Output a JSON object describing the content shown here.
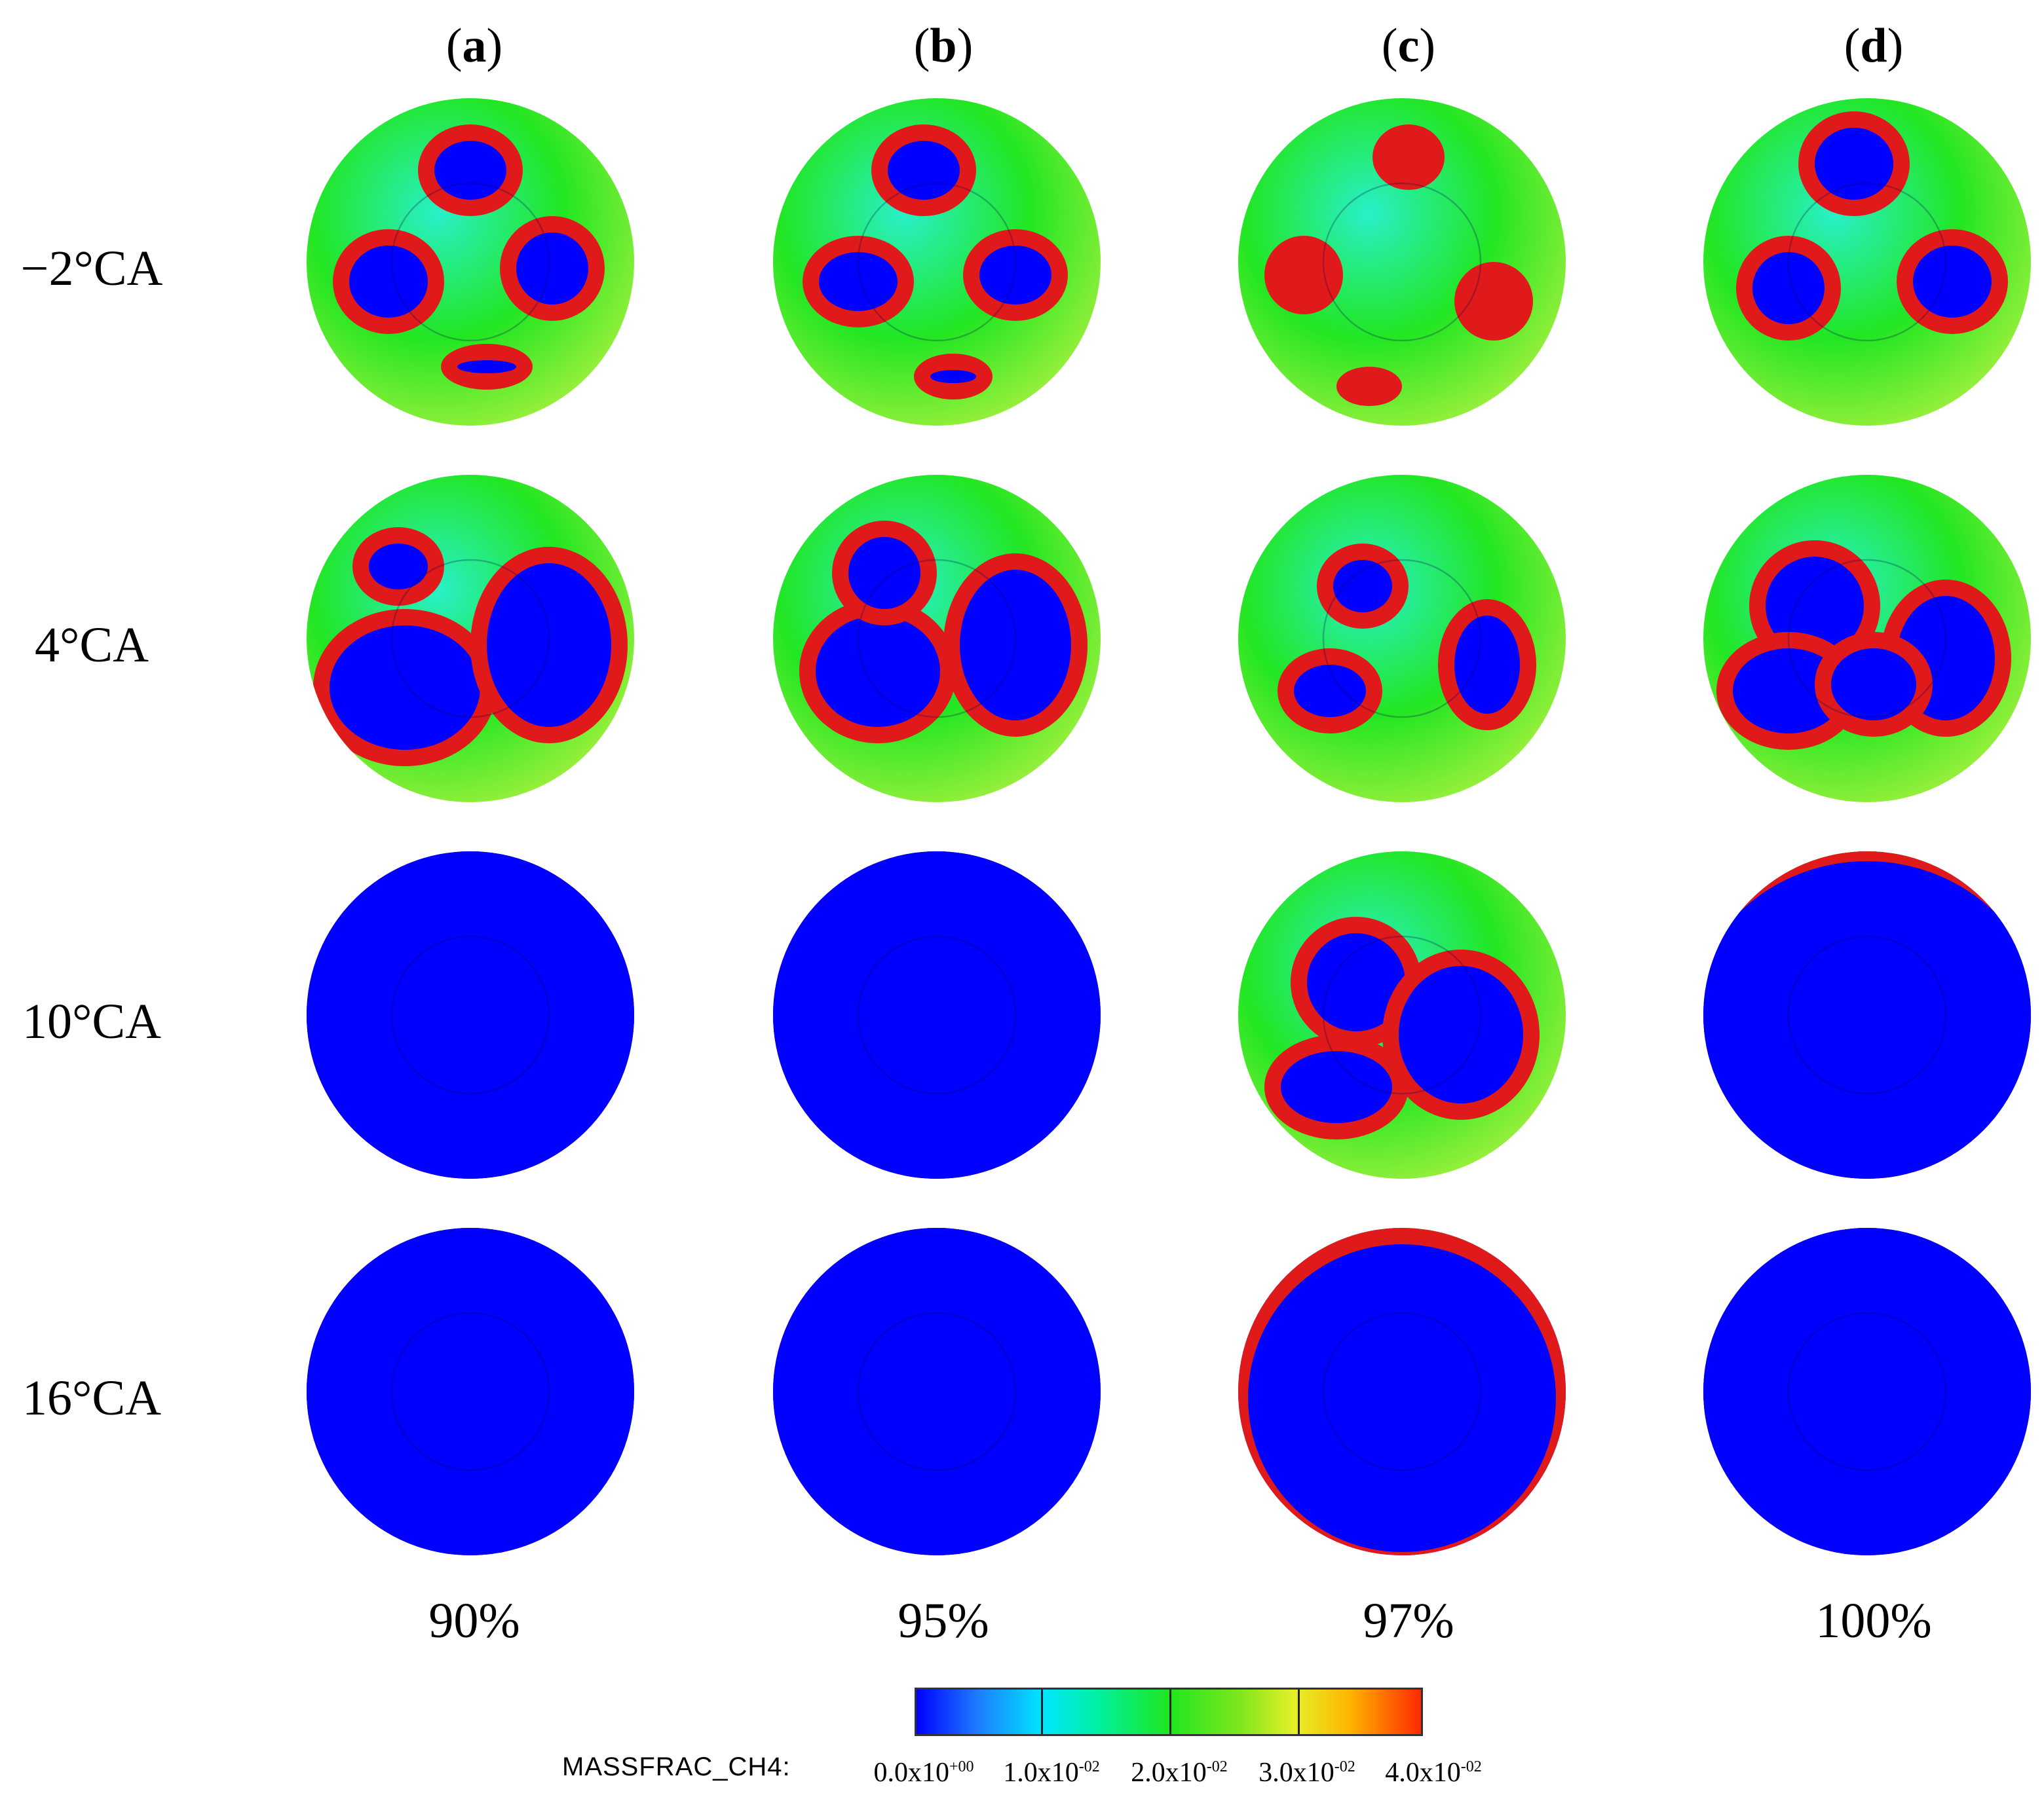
{
  "columns": [
    {
      "letter": "a",
      "percent": "90%"
    },
    {
      "letter": "b",
      "percent": "95%"
    },
    {
      "letter": "c",
      "percent": "97%"
    },
    {
      "letter": "d",
      "percent": "100%"
    }
  ],
  "rows": [
    "−2°CA",
    "4°CA",
    "10°CA",
    "16°CA"
  ],
  "colorbar": {
    "title": "MASSFRAC_CH4:",
    "ticks": [
      "0.0x10",
      "1.0x10",
      "2.0x10",
      "3.0x10",
      "4.0x10"
    ],
    "exponents": [
      "+00",
      "-02",
      "-02",
      "-02",
      "-02"
    ]
  },
  "colors": {
    "burned": "#0000ff",
    "unburned": "#22e622",
    "flame_front": "#e01a1a",
    "light_green": "#9cf03c",
    "cyan": "#28f0c8"
  }
}
